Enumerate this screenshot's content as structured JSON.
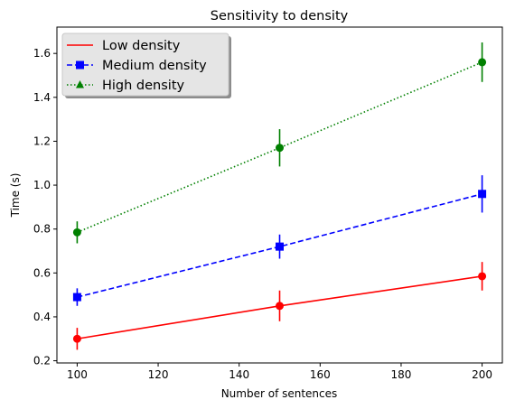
{
  "chart_data": {
    "type": "line",
    "title": "Sensitivity to density",
    "xlabel": "Number of sentences",
    "ylabel": "Time (s)",
    "x": [
      100,
      150,
      200
    ],
    "xlim": [
      95,
      205
    ],
    "ylim": [
      0.19,
      1.72
    ],
    "xticks": [
      100,
      120,
      140,
      160,
      180,
      200
    ],
    "yticks": [
      0.2,
      0.4,
      0.6,
      0.8,
      1.0,
      1.2,
      1.4,
      1.6
    ],
    "ytick_labels": [
      "0.2",
      "0.4",
      "0.6",
      "0.8",
      "1.0",
      "1.2",
      "1.4",
      "1.6"
    ],
    "legend_position": "upper-left",
    "series": [
      {
        "name": "Low density",
        "values": [
          0.3,
          0.45,
          0.585
        ],
        "errors": [
          0.05,
          0.07,
          0.065
        ],
        "color": "#ff0000",
        "line_style": "solid",
        "marker": "circle",
        "legend_marker": "none"
      },
      {
        "name": "Medium density",
        "values": [
          0.49,
          0.72,
          0.96
        ],
        "errors": [
          0.04,
          0.055,
          0.085
        ],
        "color": "#0000ff",
        "line_style": "dashed",
        "marker": "square",
        "legend_marker": "square"
      },
      {
        "name": "High density",
        "values": [
          0.785,
          1.17,
          1.56
        ],
        "errors": [
          0.05,
          0.085,
          0.09
        ],
        "color": "#008000",
        "line_style": "dotted",
        "marker": "circle",
        "legend_marker": "triangle"
      }
    ]
  }
}
